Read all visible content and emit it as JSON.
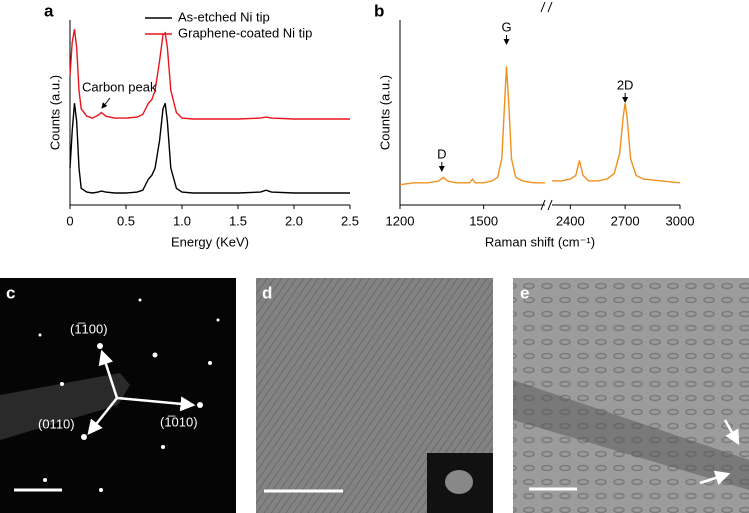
{
  "chart_data": [
    {
      "type": "line",
      "label": "a",
      "xlabel": "Energy (KeV)",
      "ylabel": "Counts (a.u.)",
      "xlim": [
        0,
        2.5
      ],
      "ylim": [
        0,
        100
      ],
      "xticks": [
        0,
        0.5,
        {
          "value": 1,
          "label": "1.0"
        },
        1.5,
        {
          "value": 2,
          "label": "2.0"
        },
        2.5
      ],
      "legend": "upper right",
      "x": [
        0,
        0.02,
        0.04,
        0.06,
        0.08,
        0.1,
        0.15,
        0.2,
        0.25,
        0.28,
        0.32,
        0.4,
        0.5,
        0.6,
        0.65,
        0.7,
        0.73,
        0.76,
        0.8,
        0.83,
        0.85,
        0.87,
        0.9,
        0.95,
        1.0,
        1.1,
        1.3,
        1.5,
        1.7,
        1.75,
        1.8,
        2.0,
        2.2,
        2.5
      ],
      "series": [
        {
          "name": "As-etched Ni tip",
          "color": "#000000",
          "values": [
            20,
            40,
            55,
            45,
            20,
            9,
            7,
            6.5,
            7,
            7.5,
            7,
            6.5,
            6.5,
            7,
            8,
            14,
            16,
            20,
            35,
            52,
            55,
            45,
            20,
            9,
            7,
            6.5,
            6.5,
            6.5,
            7,
            8,
            7,
            6.5,
            6.5,
            6.5
          ]
        },
        {
          "name": "Graphene-coated Ni tip",
          "color": "#e8141c",
          "values": [
            70,
            88,
            95,
            85,
            62,
            52,
            48,
            47,
            48.5,
            50,
            48,
            47,
            47,
            47.5,
            49,
            55,
            57,
            62,
            78,
            92,
            93,
            85,
            62,
            50,
            47,
            46.5,
            46.5,
            46.5,
            47,
            47.5,
            47,
            46.5,
            46.5,
            46.5
          ]
        }
      ],
      "annotations": [
        "Carbon peak"
      ]
    },
    {
      "type": "broken-line",
      "label": "b",
      "xlabel": "Raman shift (cm⁻¹)",
      "ylabel": "Counts (a.u.)",
      "ylim": [
        0,
        100
      ],
      "color": "#f0901e",
      "segments": [
        {
          "xlim": [
            1200,
            1720
          ],
          "xticks": [
            1200,
            1500
          ],
          "x": [
            1200,
            1250,
            1300,
            1340,
            1355,
            1370,
            1400,
            1450,
            1460,
            1470,
            1500,
            1530,
            1550,
            1565,
            1575,
            1582,
            1590,
            1600,
            1615,
            1640,
            1680,
            1720
          ],
          "values": [
            11,
            12,
            12,
            13,
            15,
            13,
            12,
            12,
            14,
            12,
            12,
            13,
            15,
            25,
            55,
            75,
            55,
            25,
            15,
            13,
            12,
            12
          ]
        },
        {
          "xlim": [
            2300,
            3000
          ],
          "xticks": [
            2400,
            2700,
            3000
          ],
          "x": [
            2300,
            2350,
            2400,
            2430,
            2450,
            2470,
            2500,
            2550,
            2600,
            2640,
            2670,
            2690,
            2700,
            2710,
            2730,
            2760,
            2800,
            2900,
            3000
          ],
          "values": [
            13,
            13,
            14,
            16,
            24,
            16,
            13,
            13,
            14,
            17,
            28,
            48,
            55,
            48,
            25,
            16,
            14,
            13,
            12
          ]
        }
      ],
      "annotations": [
        "D",
        "G",
        "2D"
      ]
    }
  ],
  "images": [
    {
      "label": "c",
      "annotations": [
        "(1̅100)",
        "(1̅010)",
        "(0110)"
      ]
    },
    {
      "label": "d"
    },
    {
      "label": "e"
    }
  ]
}
